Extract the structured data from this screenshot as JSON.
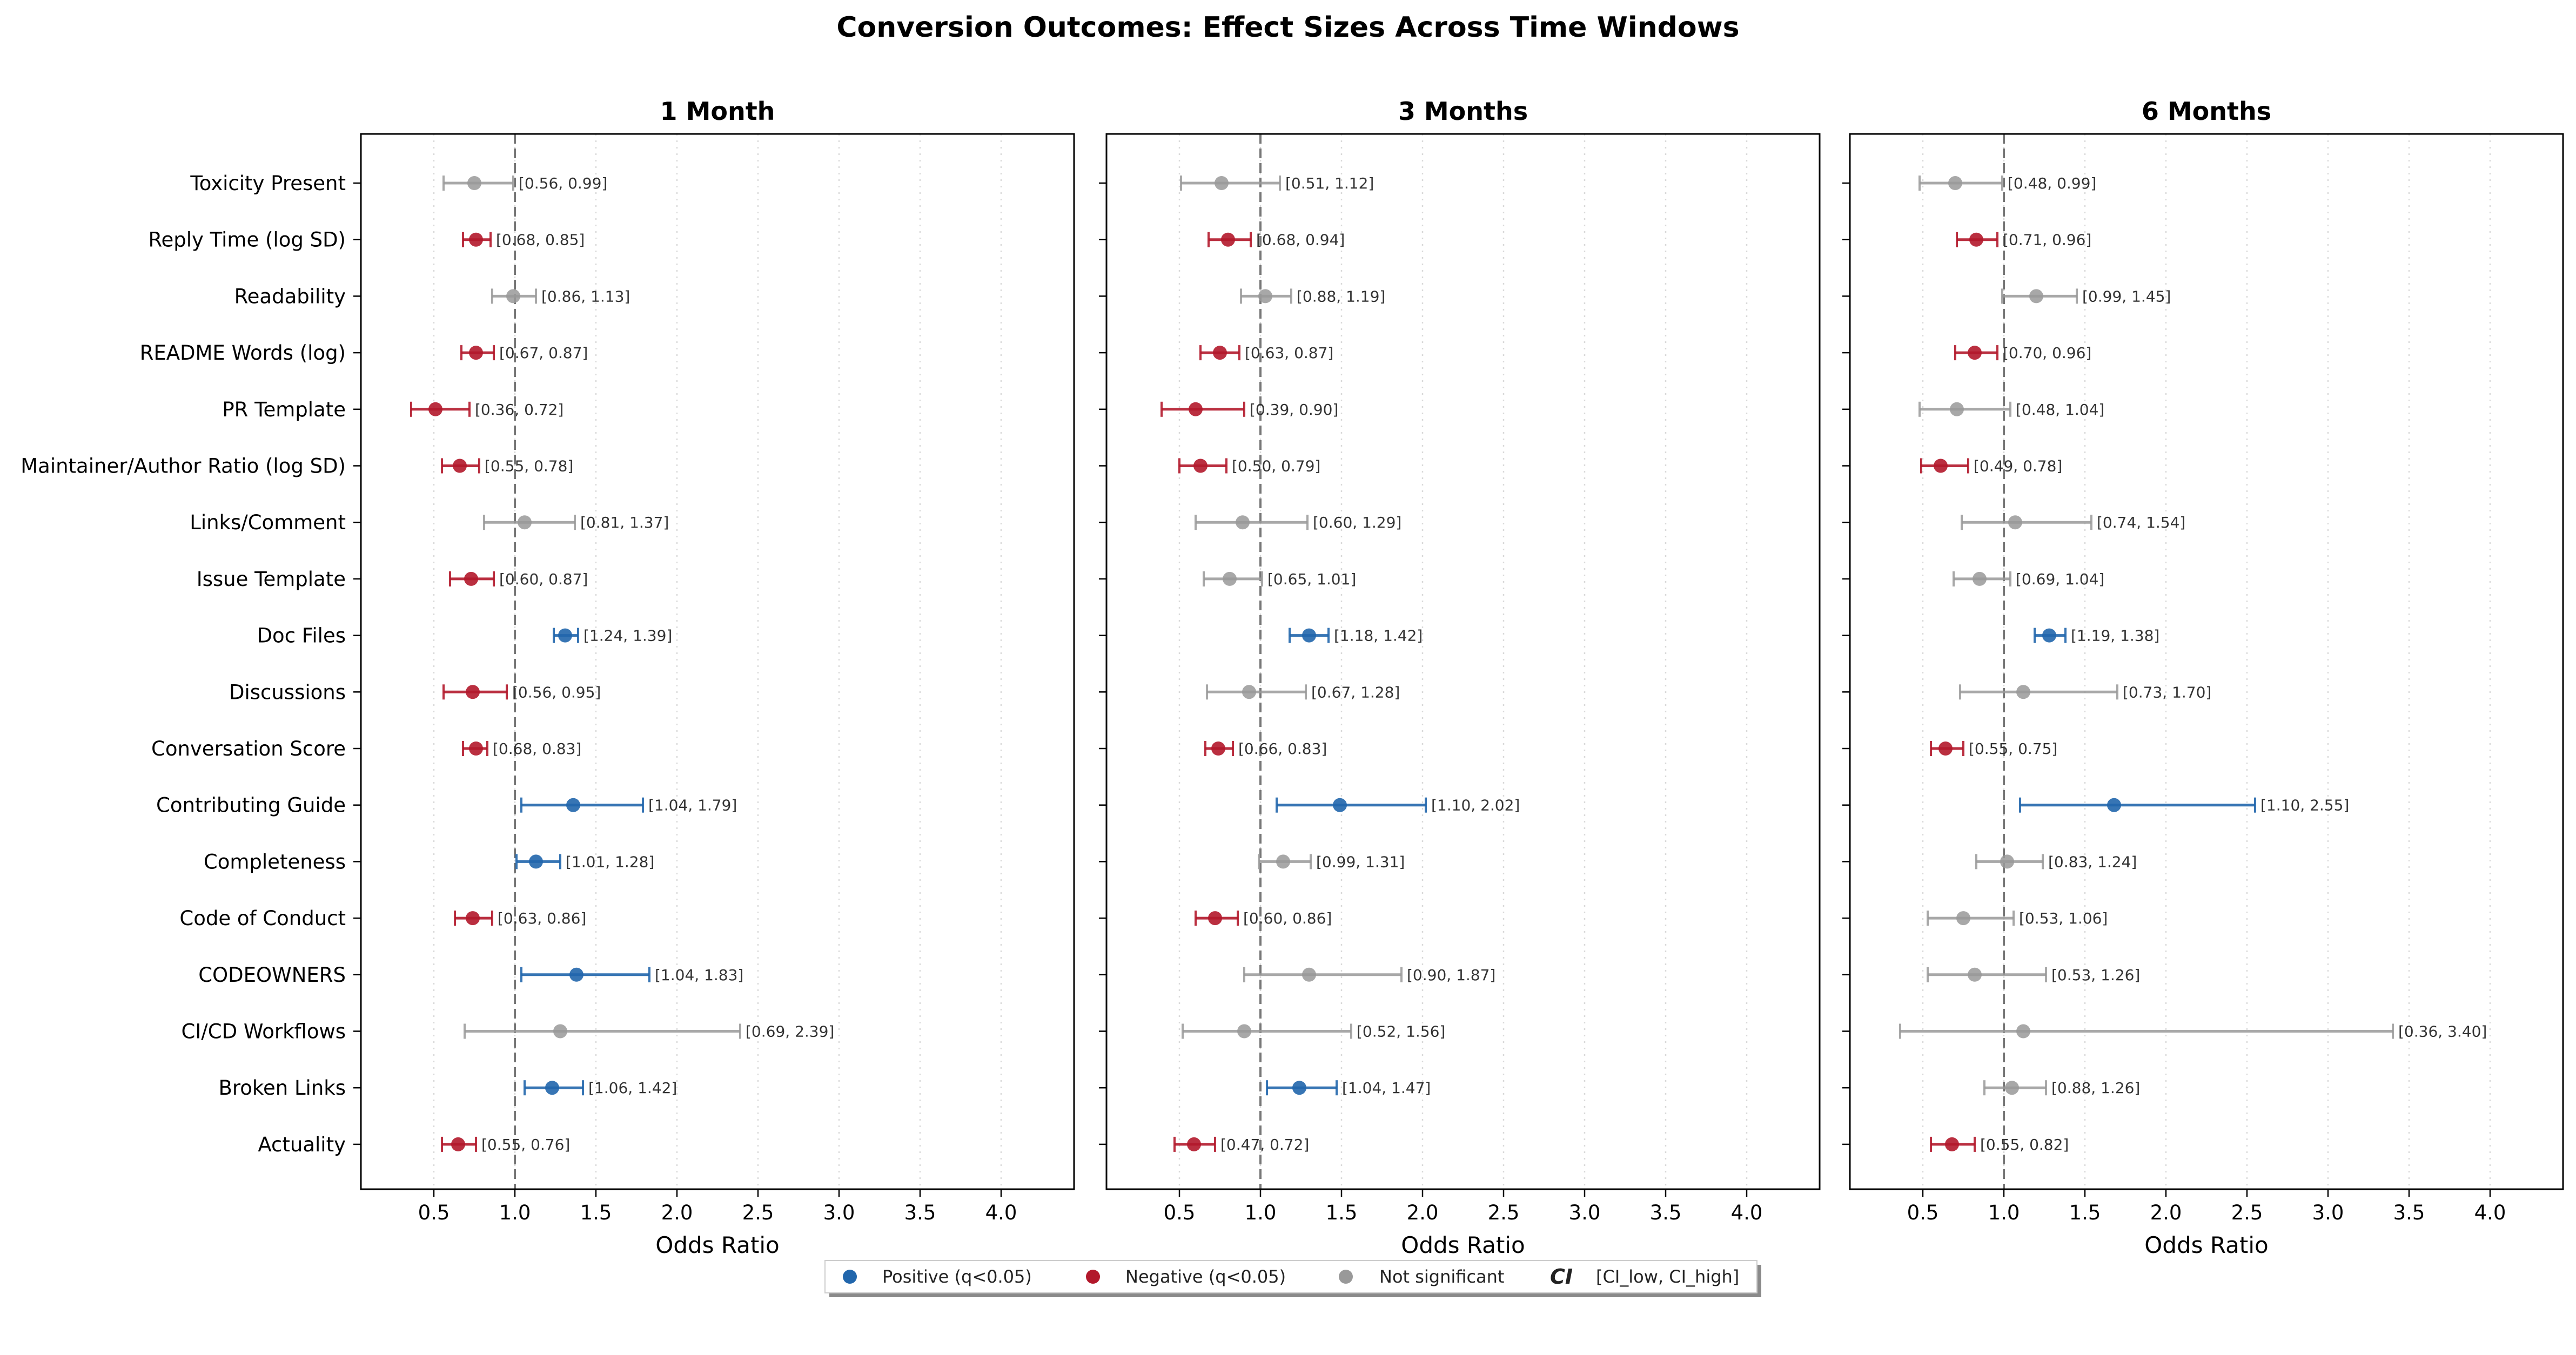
{
  "title": "Conversion Outcomes: Effect Sizes Across Time Windows",
  "colors": {
    "positive": "#2166ac",
    "negative": "#b2182b",
    "not_significant": "#999999"
  },
  "legend": {
    "items": [
      {
        "label": "Positive (q<0.05)",
        "key": "positive"
      },
      {
        "label": "Negative (q<0.05)",
        "key": "negative"
      },
      {
        "label": "Not significant",
        "key": "not_significant"
      },
      {
        "label": "[CI_low, CI_high]",
        "key": "ci",
        "symbol": "CI"
      }
    ]
  },
  "chart_data": [
    {
      "type": "scatter",
      "title": "1 Month",
      "xlabel": "Odds Ratio",
      "xlim": [
        0.05,
        4.45
      ],
      "xticks": [
        "0.5",
        "1.0",
        "1.5",
        "2.0",
        "2.5",
        "3.0",
        "3.5",
        "4.0"
      ],
      "reference_line": 1.0,
      "grid": "x-dotted",
      "rows": [
        {
          "label": "Toxicity Present",
          "or": 0.75,
          "ci_label": "[0.56, 0.99]",
          "ci": [
            0.56,
            0.99
          ],
          "sig": "not_significant"
        },
        {
          "label": "Reply Time (log SD)",
          "or": 0.76,
          "ci_label": "[0.68, 0.85]",
          "ci": [
            0.68,
            0.85
          ],
          "sig": "negative"
        },
        {
          "label": "Readability",
          "or": 0.99,
          "ci_label": "[0.86, 1.13]",
          "ci": [
            0.86,
            1.13
          ],
          "sig": "not_significant"
        },
        {
          "label": "README Words (log)",
          "or": 0.76,
          "ci_label": "[0.67, 0.87]",
          "ci": [
            0.67,
            0.87
          ],
          "sig": "negative"
        },
        {
          "label": "PR Template",
          "or": 0.51,
          "ci_label": "[0.36, 0.72]",
          "ci": [
            0.36,
            0.72
          ],
          "sig": "negative"
        },
        {
          "label": "Maintainer/Author Ratio (log SD)",
          "or": 0.66,
          "ci_label": "[0.55, 0.78]",
          "ci": [
            0.55,
            0.78
          ],
          "sig": "negative"
        },
        {
          "label": "Links/Comment",
          "or": 1.06,
          "ci_label": "[0.81, 1.37]",
          "ci": [
            0.81,
            1.37
          ],
          "sig": "not_significant"
        },
        {
          "label": "Issue Template",
          "or": 0.73,
          "ci_label": "[0.60, 0.87]",
          "ci": [
            0.6,
            0.87
          ],
          "sig": "negative"
        },
        {
          "label": "Doc Files",
          "or": 1.31,
          "ci_label": "[1.24, 1.39]",
          "ci": [
            1.24,
            1.39
          ],
          "sig": "positive"
        },
        {
          "label": "Discussions",
          "or": 0.74,
          "ci_label": "[0.56, 0.95]",
          "ci": [
            0.56,
            0.95
          ],
          "sig": "negative"
        },
        {
          "label": "Conversation Score",
          "or": 0.76,
          "ci_label": "[0.68, 0.83]",
          "ci": [
            0.68,
            0.83
          ],
          "sig": "negative"
        },
        {
          "label": "Contributing Guide",
          "or": 1.36,
          "ci_label": "[1.04, 1.79]",
          "ci": [
            1.04,
            1.79
          ],
          "sig": "positive"
        },
        {
          "label": "Completeness",
          "or": 1.13,
          "ci_label": "[1.01, 1.28]",
          "ci": [
            1.01,
            1.28
          ],
          "sig": "positive"
        },
        {
          "label": "Code of Conduct",
          "or": 0.74,
          "ci_label": "[0.63, 0.86]",
          "ci": [
            0.63,
            0.86
          ],
          "sig": "negative"
        },
        {
          "label": "CODEOWNERS",
          "or": 1.38,
          "ci_label": "[1.04, 1.83]",
          "ci": [
            1.04,
            1.83
          ],
          "sig": "positive"
        },
        {
          "label": "CI/CD Workflows",
          "or": 1.28,
          "ci_label": "[0.69, 2.39]",
          "ci": [
            0.69,
            2.39
          ],
          "sig": "not_significant"
        },
        {
          "label": "Broken Links",
          "or": 1.23,
          "ci_label": "[1.06, 1.42]",
          "ci": [
            1.06,
            1.42
          ],
          "sig": "positive"
        },
        {
          "label": "Actuality",
          "or": 0.65,
          "ci_label": "[0.55, 0.76]",
          "ci": [
            0.55,
            0.76
          ],
          "sig": "negative"
        }
      ]
    },
    {
      "type": "scatter",
      "title": "3 Months",
      "xlabel": "Odds Ratio",
      "xlim": [
        0.05,
        4.45
      ],
      "xticks": [
        "0.5",
        "1.0",
        "1.5",
        "2.0",
        "2.5",
        "3.0",
        "3.5",
        "4.0"
      ],
      "reference_line": 1.0,
      "grid": "x-dotted",
      "rows": [
        {
          "label": "Toxicity Present",
          "or": 0.76,
          "ci_label": "[0.51, 1.12]",
          "ci": [
            0.51,
            1.12
          ],
          "sig": "not_significant"
        },
        {
          "label": "Reply Time (log SD)",
          "or": 0.8,
          "ci_label": "[0.68, 0.94]",
          "ci": [
            0.68,
            0.94
          ],
          "sig": "negative"
        },
        {
          "label": "Readability",
          "or": 1.03,
          "ci_label": "[0.88, 1.19]",
          "ci": [
            0.88,
            1.19
          ],
          "sig": "not_significant"
        },
        {
          "label": "README Words (log)",
          "or": 0.75,
          "ci_label": "[0.63, 0.87]",
          "ci": [
            0.63,
            0.87
          ],
          "sig": "negative"
        },
        {
          "label": "PR Template",
          "or": 0.6,
          "ci_label": "[0.39, 0.90]",
          "ci": [
            0.39,
            0.9
          ],
          "sig": "negative"
        },
        {
          "label": "Maintainer/Author Ratio (log SD)",
          "or": 0.63,
          "ci_label": "[0.50, 0.79]",
          "ci": [
            0.5,
            0.79
          ],
          "sig": "negative"
        },
        {
          "label": "Links/Comment",
          "or": 0.89,
          "ci_label": "[0.60, 1.29]",
          "ci": [
            0.6,
            1.29
          ],
          "sig": "not_significant"
        },
        {
          "label": "Issue Template",
          "or": 0.81,
          "ci_label": "[0.65, 1.01]",
          "ci": [
            0.65,
            1.01
          ],
          "sig": "not_significant"
        },
        {
          "label": "Doc Files",
          "or": 1.3,
          "ci_label": "[1.18, 1.42]",
          "ci": [
            1.18,
            1.42
          ],
          "sig": "positive"
        },
        {
          "label": "Discussions",
          "or": 0.93,
          "ci_label": "[0.67, 1.28]",
          "ci": [
            0.67,
            1.28
          ],
          "sig": "not_significant"
        },
        {
          "label": "Conversation Score",
          "or": 0.74,
          "ci_label": "[0.66, 0.83]",
          "ci": [
            0.66,
            0.83
          ],
          "sig": "negative"
        },
        {
          "label": "Contributing Guide",
          "or": 1.49,
          "ci_label": "[1.10, 2.02]",
          "ci": [
            1.1,
            2.02
          ],
          "sig": "positive"
        },
        {
          "label": "Completeness",
          "or": 1.14,
          "ci_label": "[0.99, 1.31]",
          "ci": [
            0.99,
            1.31
          ],
          "sig": "not_significant"
        },
        {
          "label": "Code of Conduct",
          "or": 0.72,
          "ci_label": "[0.60, 0.86]",
          "ci": [
            0.6,
            0.86
          ],
          "sig": "negative"
        },
        {
          "label": "CODEOWNERS",
          "or": 1.3,
          "ci_label": "[0.90, 1.87]",
          "ci": [
            0.9,
            1.87
          ],
          "sig": "not_significant"
        },
        {
          "label": "CI/CD Workflows",
          "or": 0.9,
          "ci_label": "[0.52, 1.56]",
          "ci": [
            0.52,
            1.56
          ],
          "sig": "not_significant"
        },
        {
          "label": "Broken Links",
          "or": 1.24,
          "ci_label": "[1.04, 1.47]",
          "ci": [
            1.04,
            1.47
          ],
          "sig": "positive"
        },
        {
          "label": "Actuality",
          "or": 0.59,
          "ci_label": "[0.47, 0.72]",
          "ci": [
            0.47,
            0.72
          ],
          "sig": "negative"
        }
      ]
    },
    {
      "type": "scatter",
      "title": "6 Months",
      "xlabel": "Odds Ratio",
      "xlim": [
        0.05,
        4.45
      ],
      "xticks": [
        "0.5",
        "1.0",
        "1.5",
        "2.0",
        "2.5",
        "3.0",
        "3.5",
        "4.0"
      ],
      "reference_line": 1.0,
      "grid": "x-dotted",
      "rows": [
        {
          "label": "Toxicity Present",
          "or": 0.7,
          "ci_label": "[0.48, 0.99]",
          "ci": [
            0.48,
            0.99
          ],
          "sig": "not_significant"
        },
        {
          "label": "Reply Time (log SD)",
          "or": 0.83,
          "ci_label": "[0.71, 0.96]",
          "ci": [
            0.71,
            0.96
          ],
          "sig": "negative"
        },
        {
          "label": "Readability",
          "or": 1.2,
          "ci_label": "[0.99, 1.45]",
          "ci": [
            0.99,
            1.45
          ],
          "sig": "not_significant"
        },
        {
          "label": "README Words (log)",
          "or": 0.82,
          "ci_label": "[0.70, 0.96]",
          "ci": [
            0.7,
            0.96
          ],
          "sig": "negative"
        },
        {
          "label": "PR Template",
          "or": 0.71,
          "ci_label": "[0.48, 1.04]",
          "ci": [
            0.48,
            1.04
          ],
          "sig": "not_significant"
        },
        {
          "label": "Maintainer/Author Ratio (log SD)",
          "or": 0.61,
          "ci_label": "[0.49, 0.78]",
          "ci": [
            0.49,
            0.78
          ],
          "sig": "negative"
        },
        {
          "label": "Links/Comment",
          "or": 1.07,
          "ci_label": "[0.74, 1.54]",
          "ci": [
            0.74,
            1.54
          ],
          "sig": "not_significant"
        },
        {
          "label": "Issue Template",
          "or": 0.85,
          "ci_label": "[0.69, 1.04]",
          "ci": [
            0.69,
            1.04
          ],
          "sig": "not_significant"
        },
        {
          "label": "Doc Files",
          "or": 1.28,
          "ci_label": "[1.19, 1.38]",
          "ci": [
            1.19,
            1.38
          ],
          "sig": "positive"
        },
        {
          "label": "Discussions",
          "or": 1.12,
          "ci_label": "[0.73, 1.70]",
          "ci": [
            0.73,
            1.7
          ],
          "sig": "not_significant"
        },
        {
          "label": "Conversation Score",
          "or": 0.64,
          "ci_label": "[0.55, 0.75]",
          "ci": [
            0.55,
            0.75
          ],
          "sig": "negative"
        },
        {
          "label": "Contributing Guide",
          "or": 1.68,
          "ci_label": "[1.10, 2.55]",
          "ci": [
            1.1,
            2.55
          ],
          "sig": "positive"
        },
        {
          "label": "Completeness",
          "or": 1.02,
          "ci_label": "[0.83, 1.24]",
          "ci": [
            0.83,
            1.24
          ],
          "sig": "not_significant"
        },
        {
          "label": "Code of Conduct",
          "or": 0.75,
          "ci_label": "[0.53, 1.06]",
          "ci": [
            0.53,
            1.06
          ],
          "sig": "not_significant"
        },
        {
          "label": "CODEOWNERS",
          "or": 0.82,
          "ci_label": "[0.53, 1.26]",
          "ci": [
            0.53,
            1.26
          ],
          "sig": "not_significant"
        },
        {
          "label": "CI/CD Workflows",
          "or": 1.12,
          "ci_label": "[0.36, 3.40]",
          "ci": [
            0.36,
            3.4
          ],
          "sig": "not_significant"
        },
        {
          "label": "Broken Links",
          "or": 1.05,
          "ci_label": "[0.88, 1.26]",
          "ci": [
            0.88,
            1.26
          ],
          "sig": "not_significant"
        },
        {
          "label": "Actuality",
          "or": 0.68,
          "ci_label": "[0.55, 0.82]",
          "ci": [
            0.55,
            0.82
          ],
          "sig": "negative"
        }
      ]
    }
  ]
}
